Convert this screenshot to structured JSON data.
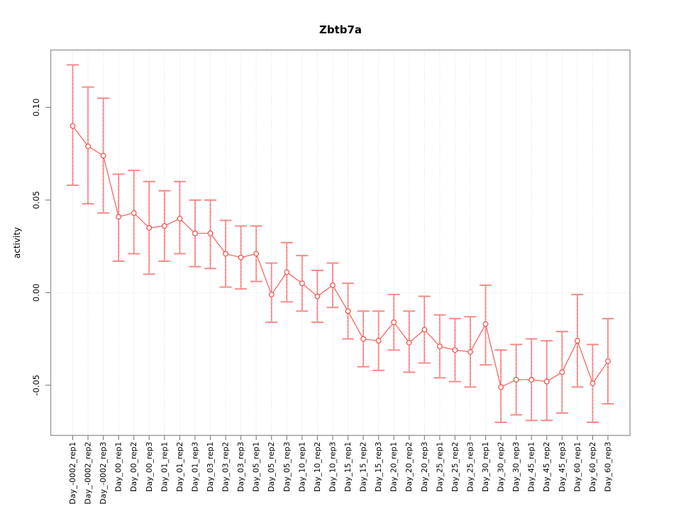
{
  "chart_data": {
    "type": "scatter",
    "title": "Zbtb7a",
    "xlabel": "",
    "ylabel": "activity",
    "legend": "none",
    "grid": "vertical dotted gridline at each category; dotted horizontal line at y=0",
    "ylim": [
      -0.0771,
      0.131
    ],
    "yticks": {
      "values": [
        -0.05,
        0.0,
        0.05,
        0.1
      ],
      "labels": [
        "-0.05",
        "0.00",
        "0.05",
        "0.10"
      ]
    },
    "categories": [
      "Day_-0002_rep1",
      "Day_-0002_rep2",
      "Day_-0002_rep3",
      "Day_00_rep1",
      "Day_00_rep2",
      "Day_00_rep3",
      "Day_01_rep1",
      "Day_01_rep2",
      "Day_01_rep3",
      "Day_03_rep1",
      "Day_03_rep2",
      "Day_03_rep3",
      "Day_05_rep1",
      "Day_05_rep2",
      "Day_05_rep3",
      "Day_10_rep1",
      "Day_10_rep2",
      "Day_10_rep3",
      "Day_15_rep1",
      "Day_15_rep2",
      "Day_15_rep3",
      "Day_20_rep1",
      "Day_20_rep2",
      "Day_20_rep3",
      "Day_25_rep1",
      "Day_25_rep2",
      "Day_25_rep3",
      "Day_30_rep1",
      "Day_30_rep2",
      "Day_30_rep3",
      "Day_45_rep1",
      "Day_45_rep2",
      "Day_45_rep3",
      "Day_60_rep1",
      "Day_60_rep2",
      "Day_60_rep3"
    ],
    "series": [
      {
        "name": "activity",
        "values": [
          0.09,
          0.079,
          0.074,
          0.041,
          0.043,
          0.035,
          0.036,
          0.04,
          0.032,
          0.032,
          0.021,
          0.019,
          0.021,
          -0.001,
          0.011,
          0.005,
          -0.002,
          0.004,
          -0.01,
          -0.025,
          -0.026,
          -0.016,
          -0.027,
          -0.02,
          -0.029,
          -0.031,
          -0.032,
          -0.017,
          -0.051,
          -0.047,
          -0.047,
          -0.048,
          -0.043,
          -0.026,
          -0.049,
          -0.037
        ],
        "error_high": [
          0.123,
          0.111,
          0.105,
          0.064,
          0.066,
          0.06,
          0.055,
          0.06,
          0.05,
          0.05,
          0.039,
          0.036,
          0.036,
          0.016,
          0.027,
          0.02,
          0.012,
          0.016,
          0.005,
          -0.01,
          -0.01,
          -0.001,
          -0.01,
          -0.002,
          -0.012,
          -0.014,
          -0.013,
          0.004,
          -0.031,
          -0.028,
          -0.025,
          -0.026,
          -0.021,
          -0.001,
          -0.028,
          -0.014
        ],
        "error_low": [
          0.058,
          0.048,
          0.043,
          0.017,
          0.021,
          0.01,
          0.017,
          0.021,
          0.014,
          0.013,
          0.003,
          0.002,
          0.006,
          -0.016,
          -0.005,
          -0.01,
          -0.016,
          -0.008,
          -0.025,
          -0.04,
          -0.042,
          -0.031,
          -0.043,
          -0.038,
          -0.046,
          -0.048,
          -0.051,
          -0.039,
          -0.07,
          -0.066,
          -0.069,
          -0.069,
          -0.065,
          -0.051,
          -0.07,
          -0.06
        ]
      }
    ],
    "colors": {
      "point": "#f4504d",
      "trend_line": "#fa5a57",
      "error_bar": "#f99c9a",
      "gridline": "#d9d9d9",
      "plot_border": "#9b9b9b",
      "text": "#000000",
      "background": "#ffffff"
    }
  }
}
